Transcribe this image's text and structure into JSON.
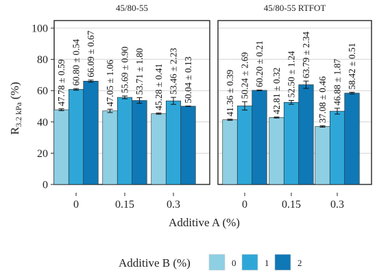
{
  "chart_data": {
    "type": "bar",
    "ylabel_main": "R",
    "ylabel_sub": "3.2 kPa",
    "ylabel_suffix": " (%)",
    "xlabel": "Additive A (%)",
    "ylim": [
      0,
      100
    ],
    "yticks": [
      "0",
      "20",
      "40",
      "60",
      "80",
      "100"
    ],
    "grid": true,
    "categories": [
      "0",
      "0.15",
      "0.3"
    ],
    "legend": {
      "title": "Additive B (%)",
      "position": "bottom",
      "entries": [
        {
          "label": "0",
          "color": "#8ecfe4"
        },
        {
          "label": "1",
          "color": "#2ea7d8"
        },
        {
          "label": "2",
          "color": "#0f78b6"
        }
      ]
    },
    "panels": [
      {
        "title": "45/80-55",
        "series": [
          {
            "name": "0",
            "values": [
              47.78,
              47.05,
              45.28
            ],
            "errors": [
              0.59,
              1.06,
              0.41
            ],
            "labels": [
              "47.78 ± 0.59",
              "47.05 ± 1.06",
              "45.28 ± 0.41"
            ]
          },
          {
            "name": "1",
            "values": [
              60.8,
              55.69,
              53.46
            ],
            "errors": [
              0.54,
              0.9,
              2.23
            ],
            "labels": [
              "60.80 ± 0.54",
              "55.69 ± 0.90",
              "53.46 ± 2.23"
            ]
          },
          {
            "name": "2",
            "values": [
              66.09,
              53.71,
              50.04
            ],
            "errors": [
              0.67,
              1.8,
              0.13
            ],
            "labels": [
              "66.09 ± 0.67",
              "53.71 ± 1.80",
              "50.04 ± 0.13"
            ]
          }
        ]
      },
      {
        "title": "45/80-55 RTFOT",
        "series": [
          {
            "name": "0",
            "values": [
              41.36,
              42.81,
              37.08
            ],
            "errors": [
              0.39,
              0.32,
              0.46
            ],
            "labels": [
              "41.36 ± 0.39",
              "42.81 ± 0.32",
              "37.08 ± 0.46"
            ]
          },
          {
            "name": "1",
            "values": [
              50.24,
              52.5,
              46.88
            ],
            "errors": [
              2.69,
              1.24,
              1.87
            ],
            "labels": [
              "50.24 ± 2.69",
              "52.50 ± 1.24",
              "46.88 ± 1.87"
            ]
          },
          {
            "name": "2",
            "values": [
              60.2,
              63.79,
              58.42
            ],
            "errors": [
              0.21,
              2.34,
              0.51
            ],
            "labels": [
              "60.20 ± 0.21",
              "63.79 ± 2.34",
              "58.42 ± 0.51"
            ]
          }
        ]
      }
    ]
  }
}
